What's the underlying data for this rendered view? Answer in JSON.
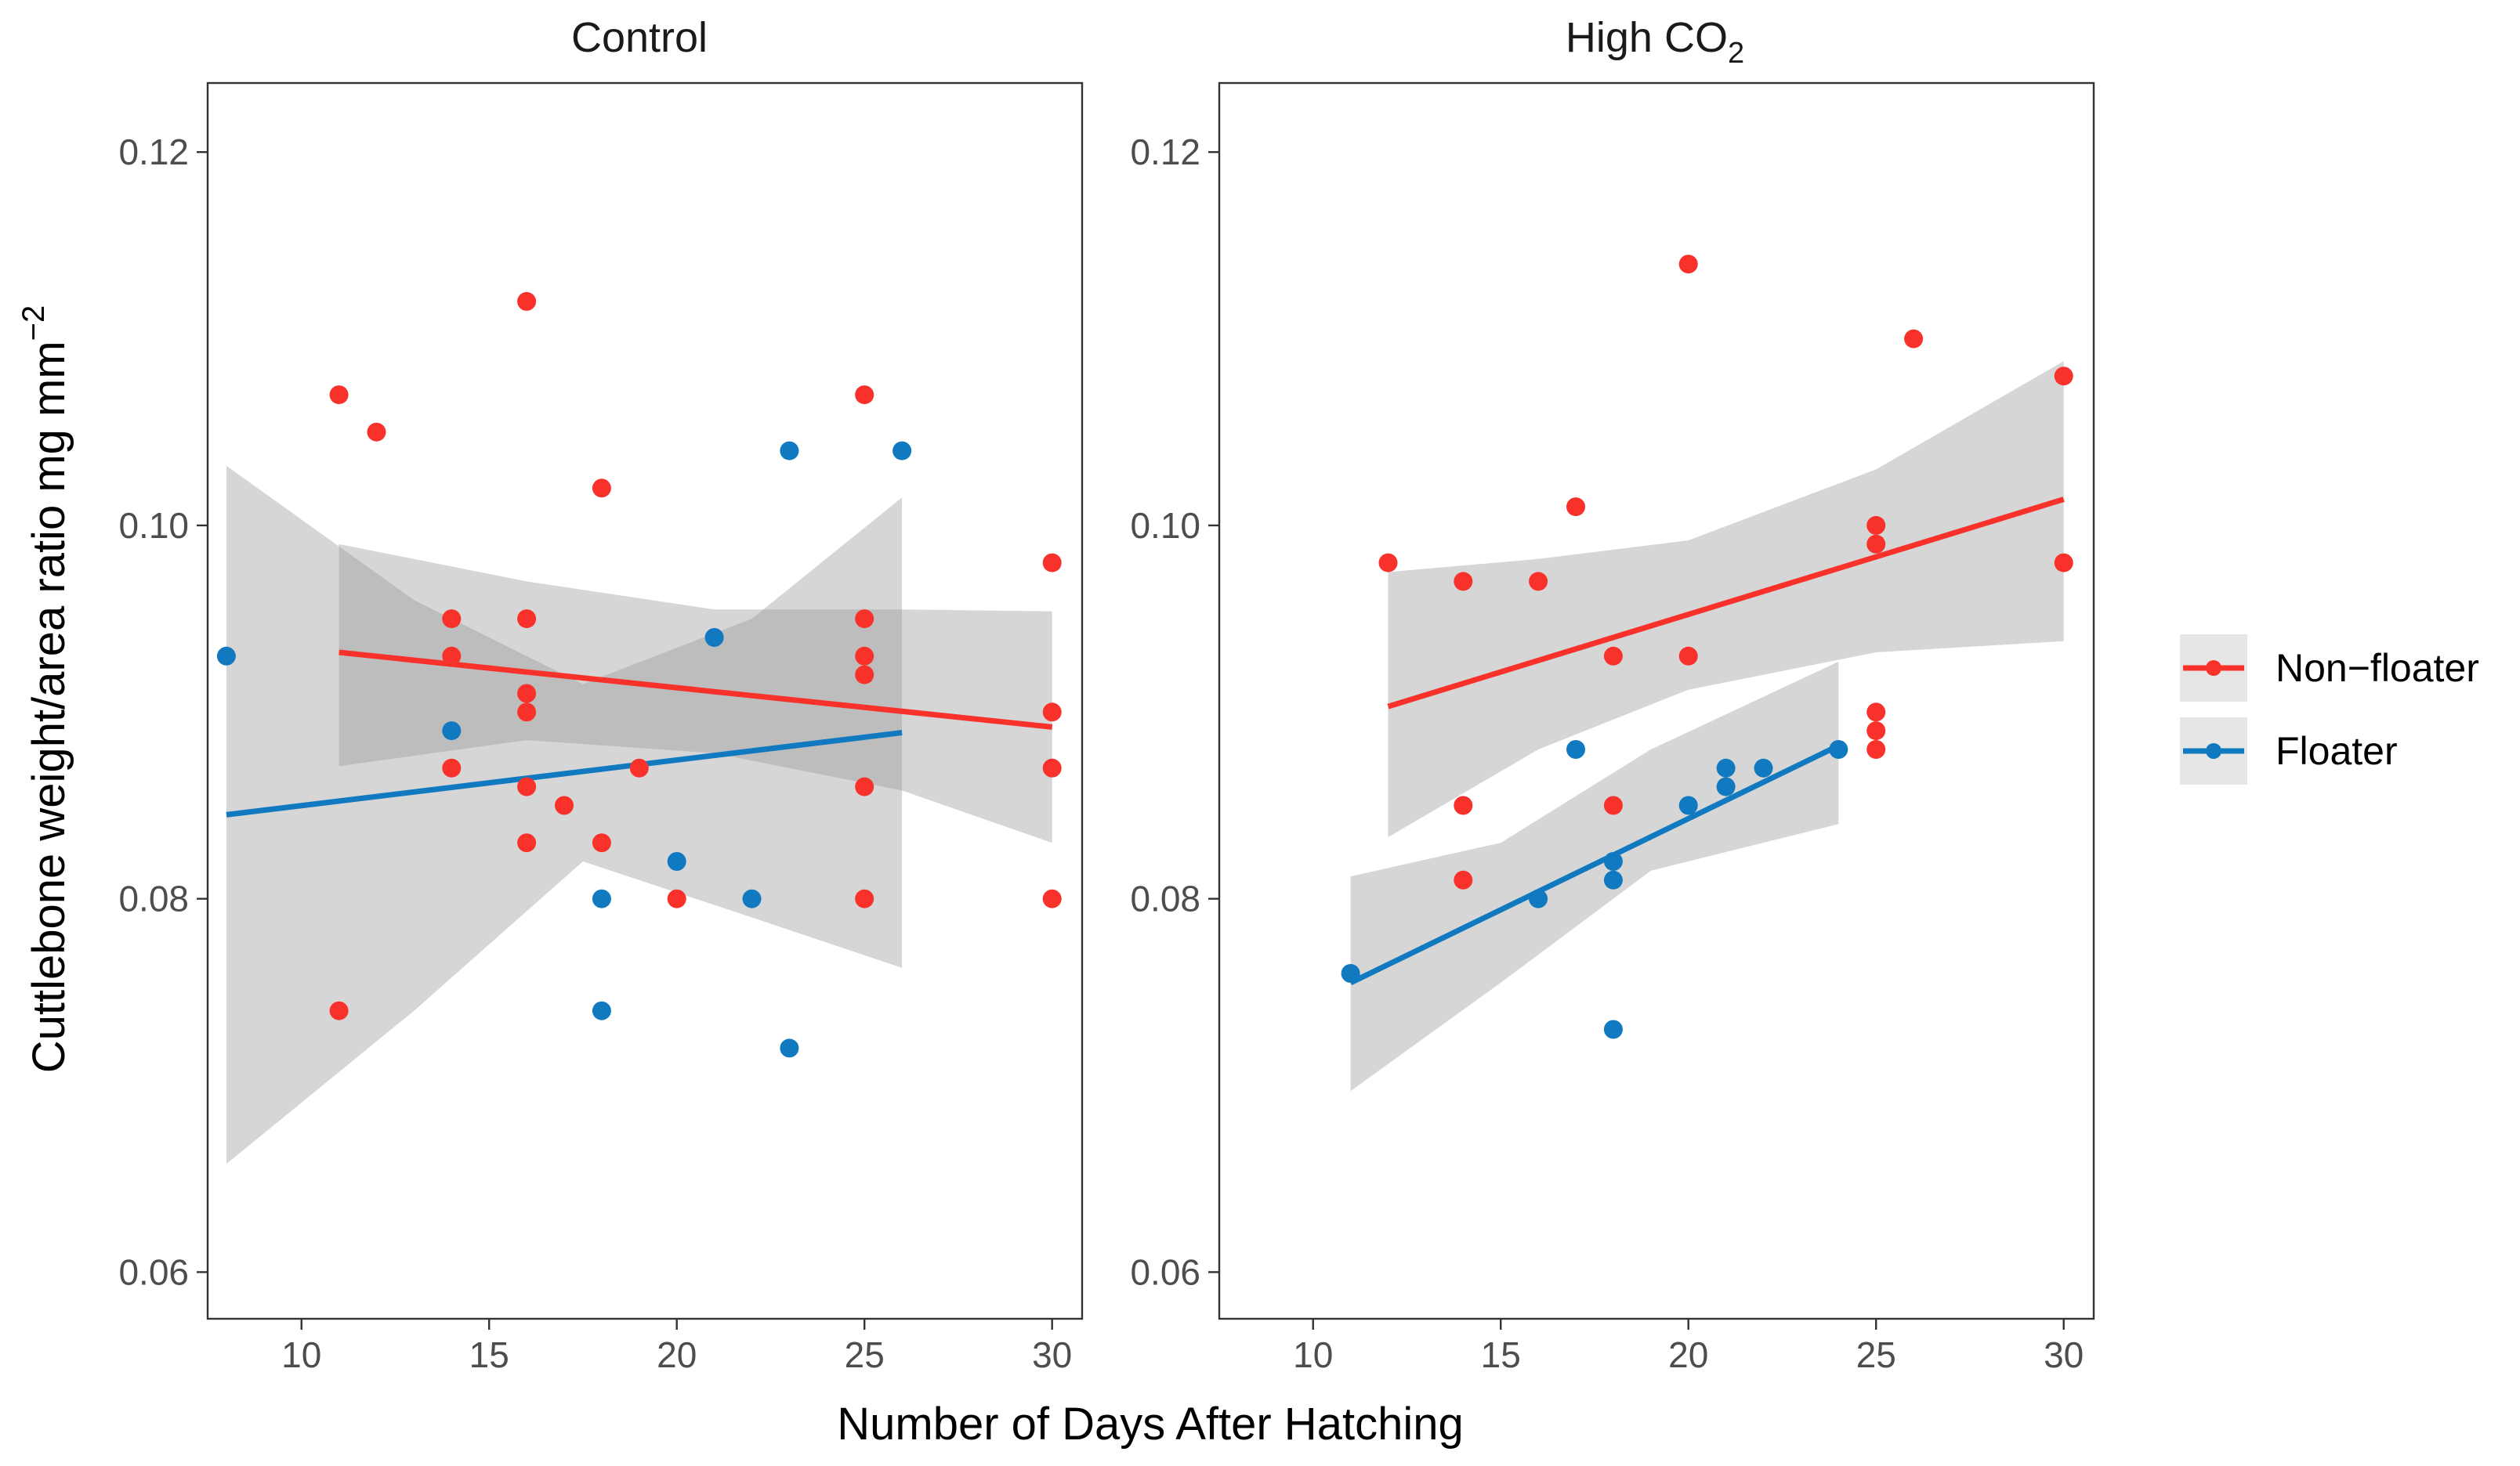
{
  "chart_data": {
    "type": "scatter",
    "xlabel": "Number of Days After Hatching",
    "ylabel": "Cuttlebone weight/area ratio  mg mm",
    "ylabel_superscript": "−2",
    "xlim": [
      7.5,
      30.8
    ],
    "ylim": [
      0.0575,
      0.1237
    ],
    "x_ticks": [
      10,
      15,
      20,
      25,
      30
    ],
    "x_tick_labels": [
      "10",
      "15",
      "20",
      "25",
      "30"
    ],
    "y_ticks": [
      0.06,
      0.08,
      0.1,
      0.12
    ],
    "y_tick_labels": [
      "0.06",
      "0.08",
      "0.10",
      "0.12"
    ],
    "grid": false,
    "legend": {
      "position": "right",
      "items": [
        {
          "name": "Non−floater",
          "color": "#F8312B"
        },
        {
          "name": "Floater",
          "color": "#1079C0"
        }
      ]
    },
    "panels": [
      {
        "title": "Control",
        "title_subscript": "",
        "series": [
          {
            "name": "Non−floater",
            "color": "#F8312B",
            "points": [
              [
                11,
                0.107
              ],
              [
                11,
                0.074
              ],
              [
                12,
                0.105
              ],
              [
                14,
                0.095
              ],
              [
                14,
                0.093
              ],
              [
                14,
                0.087
              ],
              [
                16,
                0.112
              ],
              [
                16,
                0.095
              ],
              [
                16,
                0.091
              ],
              [
                16,
                0.09
              ],
              [
                16,
                0.086
              ],
              [
                16,
                0.083
              ],
              [
                17,
                0.085
              ],
              [
                18,
                0.102
              ],
              [
                18,
                0.083
              ],
              [
                19,
                0.087
              ],
              [
                20,
                0.08
              ],
              [
                25,
                0.107
              ],
              [
                25,
                0.095
              ],
              [
                25,
                0.093
              ],
              [
                25,
                0.092
              ],
              [
                25,
                0.086
              ],
              [
                25,
                0.08
              ],
              [
                30,
                0.098
              ],
              [
                30,
                0.09
              ],
              [
                30,
                0.087
              ],
              [
                30,
                0.08
              ]
            ],
            "fit": [
              [
                11,
                0.0932
              ],
              [
                30,
                0.0892
              ]
            ],
            "ribbon": {
              "x": [
                11,
                16,
                21,
                26,
                30
              ],
              "upper": [
                0.099,
                0.097,
                0.0955,
                0.0955,
                0.0954
              ],
              "lower": [
                0.0871,
                0.0885,
                0.0878,
                0.0858,
                0.083
              ]
            }
          },
          {
            "name": "Floater",
            "color": "#1079C0",
            "points": [
              [
                8,
                0.093
              ],
              [
                14,
                0.089
              ],
              [
                18,
                0.08
              ],
              [
                18,
                0.074
              ],
              [
                20,
                0.082
              ],
              [
                21,
                0.094
              ],
              [
                22,
                0.08
              ],
              [
                23,
                0.104
              ],
              [
                23,
                0.072
              ],
              [
                26,
                0.104
              ]
            ],
            "fit": [
              [
                8,
                0.0845
              ],
              [
                26,
                0.0889
              ]
            ],
            "ribbon": {
              "x": [
                8,
                13,
                17.5,
                22,
                26
              ],
              "upper": [
                0.1032,
                0.096,
                0.0915,
                0.095,
                0.1015
              ],
              "lower": [
                0.0658,
                0.074,
                0.082,
                0.079,
                0.0763
              ]
            }
          }
        ]
      },
      {
        "title": "High CO",
        "title_subscript": "2",
        "series": [
          {
            "name": "Non−floater",
            "color": "#F8312B",
            "points": [
              [
                12,
                0.098
              ],
              [
                14,
                0.097
              ],
              [
                14,
                0.085
              ],
              [
                14,
                0.081
              ],
              [
                16,
                0.097
              ],
              [
                17,
                0.101
              ],
              [
                18,
                0.093
              ],
              [
                18,
                0.085
              ],
              [
                20,
                0.114
              ],
              [
                20,
                0.093
              ],
              [
                25,
                0.1
              ],
              [
                25,
                0.099
              ],
              [
                25,
                0.09
              ],
              [
                25,
                0.089
              ],
              [
                25,
                0.088
              ],
              [
                26,
                0.11
              ],
              [
                30,
                0.108
              ],
              [
                30,
                0.098
              ]
            ],
            "fit": [
              [
                12,
                0.0903
              ],
              [
                30,
                0.1014
              ]
            ],
            "ribbon": {
              "x": [
                12,
                16,
                20,
                25,
                30
              ],
              "upper": [
                0.0975,
                0.0982,
                0.0992,
                0.103,
                0.1088
              ],
              "lower": [
                0.0833,
                0.088,
                0.0912,
                0.0932,
                0.0938
              ]
            }
          },
          {
            "name": "Floater",
            "color": "#1079C0",
            "points": [
              [
                11,
                0.076
              ],
              [
                16,
                0.08
              ],
              [
                17,
                0.088
              ],
              [
                18,
                0.082
              ],
              [
                18,
                0.081
              ],
              [
                18,
                0.073
              ],
              [
                20,
                0.085
              ],
              [
                21,
                0.087
              ],
              [
                21,
                0.086
              ],
              [
                22,
                0.087
              ],
              [
                24,
                0.088
              ]
            ],
            "fit": [
              [
                11,
                0.0755
              ],
              [
                24,
                0.0882
              ]
            ],
            "ribbon": {
              "x": [
                11,
                15,
                19,
                24
              ],
              "upper": [
                0.0812,
                0.083,
                0.088,
                0.0927
              ],
              "lower": [
                0.0697,
                0.0755,
                0.0815,
                0.084
              ]
            }
          }
        ]
      }
    ]
  }
}
